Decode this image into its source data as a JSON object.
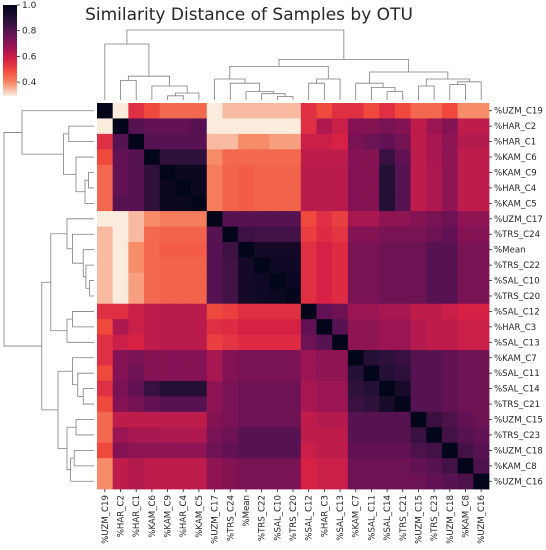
{
  "chart_data": {
    "type": "heatmap",
    "title": "Similarity Distance of Samples by OTU",
    "labels": [
      "%UZM_C19",
      "%HAR_C2",
      "%HAR_C1",
      "%KAM_C6",
      "%KAM_C9",
      "%HAR_C4",
      "%KAM_C5",
      "%UZM_C17",
      "%TRS_C24",
      "%Mean",
      "%TRS_C22",
      "%SAL_C10",
      "%TRS_C20",
      "%SAL_C12",
      "%HAR_C3",
      "%SAL_C13",
      "%KAM_C7",
      "%SAL_C11",
      "%SAL_C14",
      "%TRS_C21",
      "%UZM_C15",
      "%TRS_C23",
      "%UZM_C18",
      "%KAM_C8",
      "%UZM_C16"
    ],
    "matrix": [
      [
        1.0,
        0.3,
        0.55,
        0.5,
        0.45,
        0.45,
        0.45,
        0.3,
        0.35,
        0.35,
        0.35,
        0.35,
        0.35,
        0.55,
        0.5,
        0.55,
        0.55,
        0.5,
        0.55,
        0.5,
        0.45,
        0.45,
        0.5,
        0.4,
        0.4
      ],
      [
        0.3,
        1.0,
        0.8,
        0.78,
        0.78,
        0.78,
        0.8,
        0.25,
        0.3,
        0.3,
        0.3,
        0.28,
        0.28,
        0.55,
        0.65,
        0.6,
        0.72,
        0.72,
        0.74,
        0.72,
        0.62,
        0.68,
        0.72,
        0.62,
        0.62
      ],
      [
        0.55,
        0.8,
        1.0,
        0.8,
        0.8,
        0.8,
        0.8,
        0.35,
        0.35,
        0.4,
        0.4,
        0.38,
        0.38,
        0.6,
        0.6,
        0.58,
        0.74,
        0.76,
        0.78,
        0.75,
        0.62,
        0.66,
        0.7,
        0.64,
        0.64
      ],
      [
        0.5,
        0.78,
        0.8,
        1.0,
        0.88,
        0.88,
        0.88,
        0.4,
        0.45,
        0.45,
        0.45,
        0.45,
        0.45,
        0.62,
        0.62,
        0.62,
        0.72,
        0.72,
        0.86,
        0.78,
        0.62,
        0.66,
        0.7,
        0.62,
        0.62
      ],
      [
        0.45,
        0.78,
        0.8,
        0.88,
        1.0,
        0.97,
        0.97,
        0.42,
        0.46,
        0.47,
        0.46,
        0.46,
        0.46,
        0.63,
        0.63,
        0.63,
        0.72,
        0.72,
        0.9,
        0.8,
        0.62,
        0.65,
        0.7,
        0.62,
        0.62
      ],
      [
        0.45,
        0.78,
        0.8,
        0.88,
        0.97,
        1.0,
        0.97,
        0.42,
        0.46,
        0.47,
        0.46,
        0.46,
        0.46,
        0.63,
        0.63,
        0.63,
        0.72,
        0.72,
        0.9,
        0.8,
        0.62,
        0.65,
        0.7,
        0.62,
        0.62
      ],
      [
        0.45,
        0.8,
        0.8,
        0.88,
        0.97,
        0.97,
        1.0,
        0.42,
        0.46,
        0.47,
        0.46,
        0.46,
        0.46,
        0.63,
        0.63,
        0.63,
        0.72,
        0.72,
        0.9,
        0.8,
        0.62,
        0.65,
        0.7,
        0.62,
        0.62
      ],
      [
        0.3,
        0.25,
        0.35,
        0.4,
        0.42,
        0.42,
        0.42,
        1.0,
        0.8,
        0.8,
        0.8,
        0.8,
        0.8,
        0.5,
        0.55,
        0.52,
        0.66,
        0.66,
        0.7,
        0.7,
        0.72,
        0.74,
        0.76,
        0.7,
        0.7
      ],
      [
        0.35,
        0.3,
        0.35,
        0.45,
        0.46,
        0.46,
        0.46,
        0.8,
        1.0,
        0.85,
        0.84,
        0.84,
        0.84,
        0.52,
        0.56,
        0.54,
        0.72,
        0.72,
        0.74,
        0.74,
        0.74,
        0.76,
        0.78,
        0.72,
        0.72
      ],
      [
        0.35,
        0.3,
        0.4,
        0.45,
        0.47,
        0.47,
        0.47,
        0.8,
        0.85,
        1.0,
        0.95,
        0.95,
        0.95,
        0.55,
        0.58,
        0.56,
        0.74,
        0.74,
        0.76,
        0.76,
        0.76,
        0.8,
        0.8,
        0.74,
        0.74
      ],
      [
        0.35,
        0.3,
        0.4,
        0.45,
        0.46,
        0.46,
        0.46,
        0.8,
        0.84,
        0.95,
        1.0,
        0.96,
        0.96,
        0.55,
        0.58,
        0.56,
        0.74,
        0.74,
        0.76,
        0.76,
        0.76,
        0.8,
        0.8,
        0.74,
        0.74
      ],
      [
        0.35,
        0.28,
        0.38,
        0.45,
        0.46,
        0.46,
        0.46,
        0.8,
        0.84,
        0.95,
        0.96,
        1.0,
        0.97,
        0.55,
        0.58,
        0.56,
        0.74,
        0.74,
        0.76,
        0.76,
        0.76,
        0.8,
        0.8,
        0.74,
        0.74
      ],
      [
        0.35,
        0.28,
        0.38,
        0.45,
        0.46,
        0.46,
        0.46,
        0.8,
        0.84,
        0.95,
        0.96,
        0.97,
        1.0,
        0.55,
        0.58,
        0.56,
        0.74,
        0.74,
        0.76,
        0.76,
        0.76,
        0.8,
        0.8,
        0.74,
        0.74
      ],
      [
        0.55,
        0.55,
        0.6,
        0.62,
        0.63,
        0.63,
        0.63,
        0.5,
        0.52,
        0.55,
        0.55,
        0.55,
        0.55,
        1.0,
        0.78,
        0.76,
        0.68,
        0.68,
        0.66,
        0.66,
        0.62,
        0.62,
        0.6,
        0.58,
        0.58
      ],
      [
        0.5,
        0.65,
        0.6,
        0.62,
        0.63,
        0.63,
        0.63,
        0.55,
        0.56,
        0.58,
        0.58,
        0.58,
        0.58,
        0.78,
        1.0,
        0.8,
        0.7,
        0.7,
        0.68,
        0.68,
        0.64,
        0.62,
        0.62,
        0.6,
        0.6
      ],
      [
        0.55,
        0.6,
        0.58,
        0.62,
        0.63,
        0.63,
        0.63,
        0.52,
        0.54,
        0.56,
        0.56,
        0.56,
        0.56,
        0.76,
        0.8,
        1.0,
        0.7,
        0.7,
        0.68,
        0.68,
        0.64,
        0.62,
        0.62,
        0.6,
        0.6
      ],
      [
        0.55,
        0.72,
        0.74,
        0.72,
        0.72,
        0.72,
        0.72,
        0.66,
        0.72,
        0.74,
        0.74,
        0.74,
        0.74,
        0.68,
        0.7,
        0.7,
        1.0,
        0.9,
        0.88,
        0.86,
        0.8,
        0.8,
        0.78,
        0.76,
        0.76
      ],
      [
        0.5,
        0.72,
        0.76,
        0.72,
        0.72,
        0.72,
        0.72,
        0.66,
        0.72,
        0.74,
        0.74,
        0.74,
        0.74,
        0.68,
        0.7,
        0.7,
        0.9,
        1.0,
        0.9,
        0.88,
        0.8,
        0.8,
        0.78,
        0.76,
        0.76
      ],
      [
        0.55,
        0.74,
        0.78,
        0.86,
        0.9,
        0.9,
        0.9,
        0.7,
        0.74,
        0.76,
        0.76,
        0.76,
        0.76,
        0.66,
        0.68,
        0.68,
        0.88,
        0.9,
        1.0,
        0.94,
        0.8,
        0.8,
        0.78,
        0.76,
        0.76
      ],
      [
        0.5,
        0.72,
        0.75,
        0.78,
        0.8,
        0.8,
        0.8,
        0.7,
        0.74,
        0.76,
        0.76,
        0.76,
        0.76,
        0.66,
        0.68,
        0.68,
        0.86,
        0.88,
        0.94,
        1.0,
        0.8,
        0.8,
        0.78,
        0.76,
        0.76
      ],
      [
        0.45,
        0.62,
        0.62,
        0.62,
        0.62,
        0.62,
        0.62,
        0.72,
        0.74,
        0.76,
        0.76,
        0.76,
        0.76,
        0.62,
        0.64,
        0.64,
        0.8,
        0.8,
        0.8,
        0.8,
        1.0,
        0.86,
        0.82,
        0.78,
        0.76
      ],
      [
        0.45,
        0.68,
        0.66,
        0.66,
        0.65,
        0.65,
        0.65,
        0.74,
        0.76,
        0.8,
        0.8,
        0.8,
        0.8,
        0.62,
        0.62,
        0.62,
        0.8,
        0.8,
        0.8,
        0.8,
        0.86,
        1.0,
        0.84,
        0.8,
        0.78
      ],
      [
        0.5,
        0.72,
        0.7,
        0.7,
        0.7,
        0.7,
        0.7,
        0.76,
        0.78,
        0.8,
        0.8,
        0.8,
        0.8,
        0.6,
        0.62,
        0.62,
        0.78,
        0.78,
        0.78,
        0.78,
        0.82,
        0.84,
        1.0,
        0.84,
        0.8
      ],
      [
        0.4,
        0.62,
        0.64,
        0.62,
        0.62,
        0.62,
        0.62,
        0.7,
        0.72,
        0.74,
        0.74,
        0.74,
        0.74,
        0.58,
        0.6,
        0.6,
        0.76,
        0.76,
        0.76,
        0.76,
        0.78,
        0.8,
        0.84,
        1.0,
        0.82
      ],
      [
        0.4,
        0.62,
        0.64,
        0.62,
        0.62,
        0.62,
        0.62,
        0.7,
        0.72,
        0.74,
        0.74,
        0.74,
        0.74,
        0.58,
        0.6,
        0.6,
        0.76,
        0.76,
        0.76,
        0.76,
        0.76,
        0.78,
        0.8,
        0.82,
        1.0
      ]
    ],
    "colorbar": {
      "ticks": [
        "1.0",
        "0.8",
        "0.6",
        "0.4"
      ],
      "tick_values": [
        1.0,
        0.8,
        0.6,
        0.4
      ],
      "range": [
        0.3,
        1.0
      ],
      "colormap": "rocket_r"
    },
    "legend": "colorbar top-left",
    "grid": false
  }
}
